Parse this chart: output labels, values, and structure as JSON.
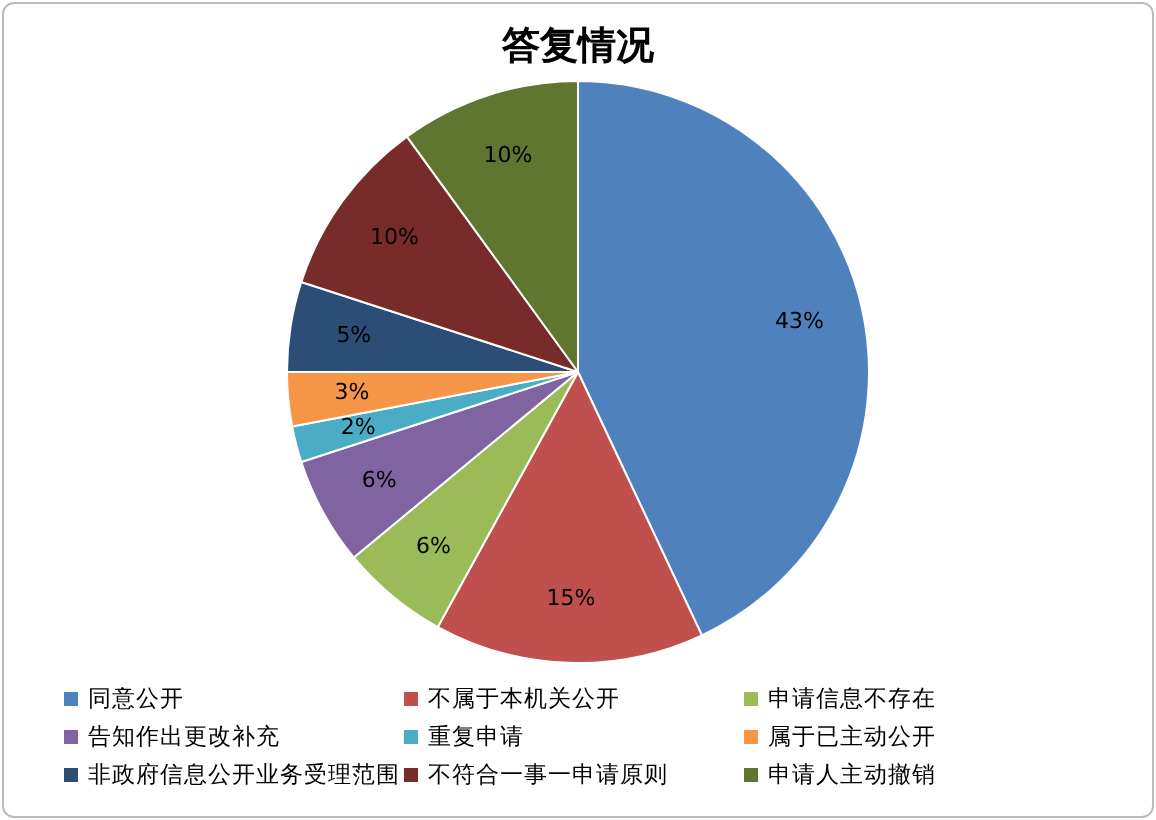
{
  "chart_data": {
    "type": "pie",
    "title": "答复情况",
    "categories": [
      "同意公开",
      "不属于本机关公开",
      "申请信息不存在",
      "告知作出更改补充",
      "重复申请",
      "属于已主动公开",
      "非政府信息公开业务受理范围",
      "不符合一事一申请原则",
      "申请人主动撤销"
    ],
    "values": [
      43,
      15,
      6,
      6,
      2,
      3,
      5,
      10,
      10
    ],
    "value_labels": [
      "43%",
      "15%",
      "6%",
      "6%",
      "2%",
      "3%",
      "5%",
      "10%",
      "10%"
    ],
    "colors": [
      "#4f81bd",
      "#c0504d",
      "#9bbb59",
      "#8064a2",
      "#4bacc6",
      "#f79646",
      "#2c4d75",
      "#772c2a",
      "#5f7530"
    ],
    "legend": "bottom"
  }
}
